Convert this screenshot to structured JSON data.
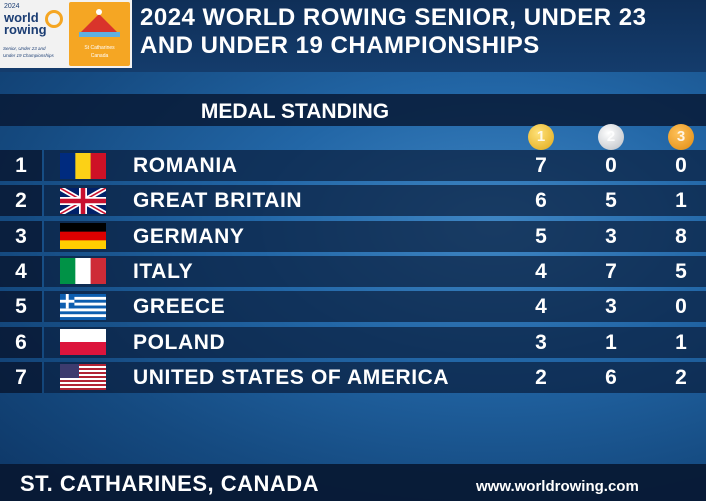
{
  "logo": {
    "year": "2024",
    "brand_line1": "world",
    "brand_line2": "rowing",
    "subtitle_line1": "Senior, Under 23 and",
    "subtitle_line2": "Under 19 Championships",
    "venue_line1": "St Catharines",
    "venue_line2": "Canada"
  },
  "header": {
    "title_line1": "2024 WORLD ROWING SENIOR, UNDER 23",
    "title_line2": "AND UNDER 19 CHAMPIONSHIPS"
  },
  "section_title": "MEDAL STANDING",
  "medal_columns": [
    "1",
    "2",
    "3"
  ],
  "table": {
    "rows": [
      [
        1,
        "ROMANIA",
        7,
        0,
        0
      ],
      [
        2,
        "GREAT BRITAIN",
        6,
        5,
        1
      ],
      [
        3,
        "GERMANY",
        5,
        3,
        8
      ],
      [
        4,
        "ITALY",
        4,
        7,
        5
      ],
      [
        5,
        "GREECE",
        4,
        3,
        0
      ],
      [
        6,
        "POLAND",
        3,
        1,
        1
      ],
      [
        7,
        "UNITED STATES OF AMERICA",
        2,
        6,
        2
      ]
    ]
  },
  "footer": {
    "location": "ST. CATHARINES, CANADA",
    "website": "www.worldrowing.com"
  }
}
